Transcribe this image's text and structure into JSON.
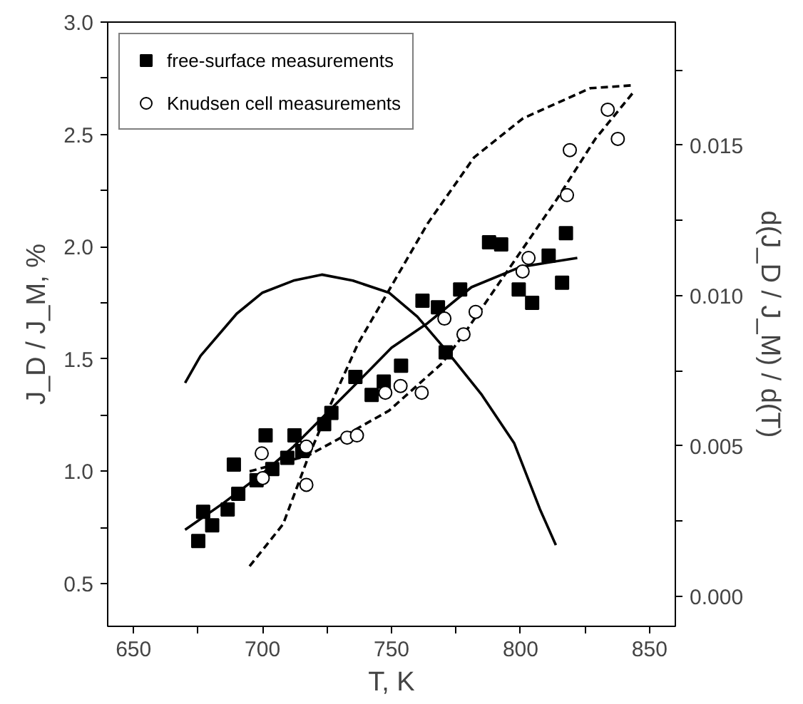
{
  "chart_data": {
    "type": "scatter",
    "xlabel": "T, K",
    "ylabel": "J_D / J_M, %",
    "y2label": "d(J_D / J_M) / d(T)",
    "xlim": [
      640,
      860
    ],
    "ylim": [
      0.31,
      3.0
    ],
    "y2lim": [
      -0.001,
      0.0191
    ],
    "xticks": [
      650,
      {
        "value": 675,
        "label": null
      },
      700,
      {
        "value": 725,
        "label": null
      },
      750,
      {
        "value": 775,
        "label": null
      },
      800,
      {
        "value": 825,
        "label": null
      },
      850
    ],
    "yticks": [
      0.5,
      {
        "value": 0.75,
        "label": null
      },
      {
        "value": 1,
        "label": "1.0"
      },
      {
        "value": 1.25,
        "label": null
      },
      1.5,
      {
        "value": 1.75,
        "label": null
      },
      {
        "value": 2,
        "label": "2.0"
      },
      {
        "value": 2.25,
        "label": null
      },
      2.5,
      {
        "value": 2.75,
        "label": null
      },
      {
        "value": 3,
        "label": "3.0"
      }
    ],
    "y2ticks": [
      {
        "value": 0,
        "label": "0.000"
      },
      {
        "value": 0.0025,
        "label": null
      },
      {
        "value": 0.005,
        "label": "0.005"
      },
      {
        "value": 0.0075,
        "label": null
      },
      {
        "value": 0.01,
        "label": "0.010"
      },
      {
        "value": 0.0125,
        "label": null
      },
      0.015,
      {
        "value": 0.0175,
        "label": null
      }
    ],
    "grid": false,
    "legend": "top left",
    "series": [
      {
        "name": "free-surface measurements",
        "marker": "square",
        "color": "#000000",
        "x": [
          675.1,
          677.0,
          680.5,
          686.5,
          688.9,
          690.6,
          697.7,
          701.2,
          703.8,
          709.6,
          712.4,
          715.4,
          723.9,
          726.7,
          736.0,
          742.3,
          747.0,
          753.7,
          762,
          768,
          771,
          776.6,
          787.8,
          792.5,
          799.3,
          804.5,
          810.9,
          816.1,
          817.6
        ],
        "values": [
          0.69,
          0.82,
          0.76,
          0.83,
          1.03,
          0.9,
          0.96,
          1.16,
          1.01,
          1.06,
          1.16,
          1.09,
          1.21,
          1.26,
          1.42,
          1.34,
          1.4,
          1.47,
          1.76,
          1.73,
          1.53,
          1.81,
          2.02,
          2.01,
          1.81,
          1.75,
          1.96,
          1.84,
          2.06
        ]
      },
      {
        "name": "Knudsen cell measurements",
        "marker": "circle",
        "color": "#000000",
        "x": [
          699.7,
          700.1,
          717.0,
          717.0,
          732.8,
          736.6,
          747.6,
          753.5,
          761.7,
          770.5,
          777.9,
          782.6,
          800.8,
          803.1,
          818.0,
          819.1,
          833.8,
          837.7
        ],
        "values": [
          1.08,
          0.97,
          1.11,
          0.94,
          1.15,
          1.16,
          1.35,
          1.38,
          1.35,
          1.68,
          1.61,
          1.71,
          1.89,
          1.95,
          2.23,
          2.43,
          2.61,
          2.48
        ]
      },
      {
        "type": "line",
        "line_style": "solid",
        "color": "#000000",
        "x": [
          670,
          685,
          700,
          712,
          725,
          738,
          750,
          764,
          781,
          800,
          822
        ],
        "values": [
          0.74,
          0.86,
          0.99,
          1.11,
          1.26,
          1.41,
          1.55,
          1.66,
          1.82,
          1.91,
          1.95
        ]
      },
      {
        "type": "line",
        "line_style": "solid",
        "axis": "y2",
        "color": "#000000",
        "x": [
          670,
          676,
          690,
          700,
          712,
          723,
          735,
          749,
          760,
          771,
          785,
          797.5,
          807.5,
          813.7
        ],
        "values": [
          0.0071,
          0.008,
          0.0094,
          0.0101,
          0.0105,
          0.0107,
          0.0105,
          0.0101,
          0.0093,
          0.0082,
          0.0067,
          0.0051,
          0.0029,
          0.0017
        ]
      },
      {
        "type": "line",
        "line_style": "dashed",
        "color": "#000000",
        "x": [
          695,
          717.6,
          732,
          749,
          769.5,
          778,
          793.6,
          814,
          829,
          843.9
        ],
        "values": [
          1.0,
          1.07,
          1.16,
          1.27,
          1.48,
          1.61,
          1.87,
          2.21,
          2.48,
          2.69
        ]
      },
      {
        "type": "line",
        "line_style": "dashed",
        "axis": "y2",
        "color": "#000000",
        "x": [
          695,
          708,
          717.6,
          726.5,
          737,
          764,
          782,
          801,
          827,
          844
        ],
        "values": [
          0.001,
          0.0024,
          0.0046,
          0.0064,
          0.0084,
          0.0124,
          0.0146,
          0.0159,
          0.0169,
          0.017
        ]
      }
    ]
  }
}
